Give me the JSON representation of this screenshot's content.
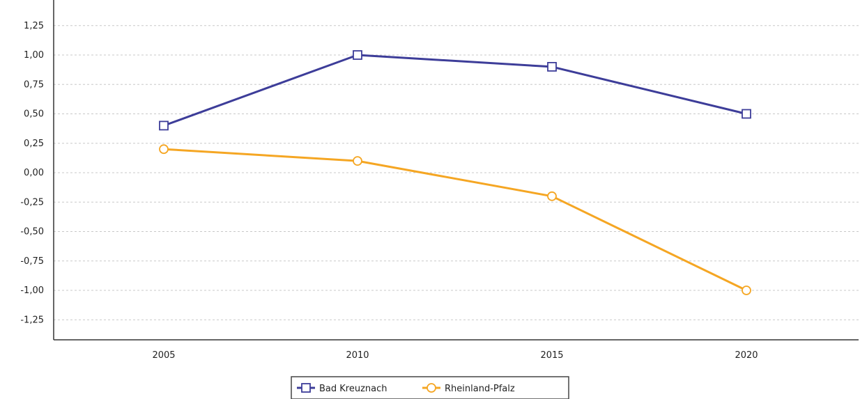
{
  "chart_data": {
    "type": "line",
    "title": "",
    "xlabel": "",
    "ylabel": "",
    "categories": [
      "2005",
      "2010",
      "2015",
      "2020"
    ],
    "y_ticks": [
      "1,25",
      "1,00",
      "0,75",
      "0,50",
      "0,25",
      "0,00",
      "-0,25",
      "-0,50",
      "-0,75",
      "-1,00",
      "-1,25"
    ],
    "ylim": [
      -1.25,
      1.25
    ],
    "grid": "horizontal, dashed",
    "legend_position": "bottom-center",
    "series": [
      {
        "name": "Bad Kreuznach",
        "values": [
          0.4,
          1.0,
          0.9,
          0.5
        ],
        "color": "#3d3d99",
        "marker": "square"
      },
      {
        "name": "Rheinland-Pfalz",
        "values": [
          0.2,
          0.1,
          -0.2,
          -1.0
        ],
        "color": "#f5a623",
        "marker": "circle"
      }
    ]
  }
}
